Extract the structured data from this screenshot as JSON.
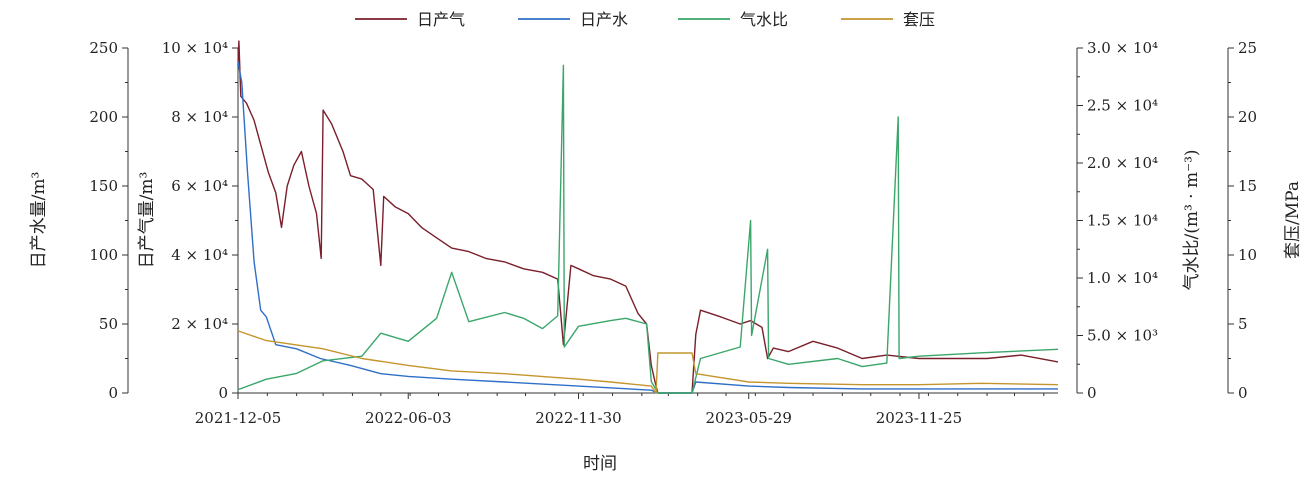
{
  "chart_data": {
    "type": "line",
    "xlabel": "时间",
    "x_ticks": [
      "2021-12-05",
      "2022-06-03",
      "2022-11-30",
      "2023-05-29",
      "2023-11-25"
    ],
    "x_range": [
      "2021-12-05",
      "2024-04-20"
    ],
    "y_axes": [
      {
        "id": "water",
        "label": "日产水量/m³",
        "range": [
          0,
          250
        ],
        "ticks": [
          "0",
          "50",
          "100",
          "150",
          "200",
          "250"
        ],
        "position": "outer-left"
      },
      {
        "id": "gas",
        "label": "日产气量/m³",
        "range": [
          0,
          100000
        ],
        "ticks": [
          "0",
          "2 × 10⁴",
          "4 × 10⁴",
          "6 × 10⁴",
          "8 × 10⁴",
          "10 × 10⁴"
        ],
        "position": "inner-left"
      },
      {
        "id": "ratio",
        "label": "气水比/(m³ · m⁻³)",
        "range": [
          0,
          30000
        ],
        "ticks": [
          "0",
          "5.0 × 10³",
          "1.0 × 10⁴",
          "1.5 × 10⁴",
          "2.0 × 10⁴",
          "2.5 × 10⁴",
          "3.0 × 10⁴"
        ],
        "position": "inner-right"
      },
      {
        "id": "pressure",
        "label": "套压/MPa",
        "range": [
          0,
          25
        ],
        "ticks": [
          "0",
          "5",
          "10",
          "15",
          "20",
          "25"
        ],
        "position": "outer-right"
      }
    ],
    "legend": [
      "日产气",
      "日产水",
      "气水比",
      "套压"
    ],
    "legend_position": "top",
    "series": [
      {
        "name": "日产气",
        "axis": "gas",
        "color": "#7a1f2b",
        "points": [
          [
            "2021-12-05",
            95000
          ],
          [
            "2021-12-06",
            102000
          ],
          [
            "2021-12-08",
            86000
          ],
          [
            "2021-12-14",
            84000
          ],
          [
            "2021-12-22",
            79000
          ],
          [
            "2021-12-29",
            72000
          ],
          [
            "2022-01-06",
            64000
          ],
          [
            "2022-01-14",
            58000
          ],
          [
            "2022-01-20",
            48000
          ],
          [
            "2022-01-26",
            60000
          ],
          [
            "2022-02-02",
            66000
          ],
          [
            "2022-02-10",
            70000
          ],
          [
            "2022-02-18",
            60000
          ],
          [
            "2022-02-26",
            52000
          ],
          [
            "2022-03-03",
            39000
          ],
          [
            "2022-03-05",
            82000
          ],
          [
            "2022-03-14",
            78000
          ],
          [
            "2022-03-26",
            70000
          ],
          [
            "2022-04-03",
            63000
          ],
          [
            "2022-04-15",
            62000
          ],
          [
            "2022-04-27",
            59000
          ],
          [
            "2022-05-05",
            37000
          ],
          [
            "2022-05-08",
            57000
          ],
          [
            "2022-05-20",
            54000
          ],
          [
            "2022-06-03",
            52000
          ],
          [
            "2022-06-17",
            48000
          ],
          [
            "2022-07-03",
            45000
          ],
          [
            "2022-07-19",
            42000
          ],
          [
            "2022-08-06",
            41000
          ],
          [
            "2022-08-24",
            39000
          ],
          [
            "2022-09-13",
            38000
          ],
          [
            "2022-10-03",
            36000
          ],
          [
            "2022-10-23",
            35000
          ],
          [
            "2022-11-08",
            33000
          ],
          [
            "2022-11-14",
            14000
          ],
          [
            "2022-11-22",
            37000
          ],
          [
            "2022-11-30",
            36000
          ],
          [
            "2022-12-16",
            34000
          ],
          [
            "2023-01-03",
            33000
          ],
          [
            "2023-01-19",
            31000
          ],
          [
            "2023-02-01",
            23000
          ],
          [
            "2023-02-10",
            20000
          ],
          [
            "2023-02-15",
            8000
          ],
          [
            "2023-02-20",
            2000
          ],
          [
            "2023-02-22",
            0
          ],
          [
            "2023-03-30",
            0
          ],
          [
            "2023-04-03",
            17000
          ],
          [
            "2023-04-08",
            24000
          ],
          [
            "2023-04-30",
            22000
          ],
          [
            "2023-05-20",
            20000
          ],
          [
            "2023-05-31",
            21000
          ],
          [
            "2023-06-12",
            19000
          ],
          [
            "2023-06-18",
            10000
          ],
          [
            "2023-06-24",
            13000
          ],
          [
            "2023-07-10",
            12000
          ],
          [
            "2023-08-05",
            15000
          ],
          [
            "2023-08-31",
            13000
          ],
          [
            "2023-09-26",
            10000
          ],
          [
            "2023-10-22",
            11000
          ],
          [
            "2023-11-25",
            10000
          ],
          [
            "2023-12-31",
            10000
          ],
          [
            "2024-02-05",
            10000
          ],
          [
            "2024-03-12",
            11000
          ],
          [
            "2024-04-20",
            9000
          ]
        ]
      },
      {
        "name": "日产水",
        "axis": "water",
        "color": "#2f6fc8",
        "points": [
          [
            "2021-12-05",
            240
          ],
          [
            "2021-12-09",
            225
          ],
          [
            "2021-12-15",
            160
          ],
          [
            "2021-12-22",
            95
          ],
          [
            "2021-12-29",
            60
          ],
          [
            "2022-01-04",
            55
          ],
          [
            "2022-01-14",
            35
          ],
          [
            "2022-02-05",
            32
          ],
          [
            "2022-03-02",
            25
          ],
          [
            "2022-04-03",
            20
          ],
          [
            "2022-05-05",
            14
          ],
          [
            "2022-06-03",
            12
          ],
          [
            "2022-07-19",
            10
          ],
          [
            "2022-09-13",
            8
          ],
          [
            "2022-11-30",
            5
          ],
          [
            "2023-02-15",
            2
          ],
          [
            "2023-02-22",
            0
          ],
          [
            "2023-03-30",
            0
          ],
          [
            "2023-04-03",
            8
          ],
          [
            "2023-05-29",
            5
          ],
          [
            "2023-07-10",
            4
          ],
          [
            "2023-09-26",
            3
          ],
          [
            "2023-11-25",
            3
          ],
          [
            "2024-01-30",
            3
          ],
          [
            "2024-04-20",
            3
          ]
        ]
      },
      {
        "name": "气水比",
        "axis": "ratio",
        "color": "#3aa66a",
        "points": [
          [
            "2021-12-05",
            300
          ],
          [
            "2022-01-04",
            1200
          ],
          [
            "2022-02-05",
            1700
          ],
          [
            "2022-03-05",
            2800
          ],
          [
            "2022-04-15",
            3200
          ],
          [
            "2022-05-05",
            5200
          ],
          [
            "2022-06-03",
            4500
          ],
          [
            "2022-07-03",
            6500
          ],
          [
            "2022-07-19",
            10500
          ],
          [
            "2022-08-06",
            6200
          ],
          [
            "2022-09-13",
            7000
          ],
          [
            "2022-10-03",
            6500
          ],
          [
            "2022-10-23",
            5600
          ],
          [
            "2022-11-08",
            6700
          ],
          [
            "2022-11-14",
            28500
          ],
          [
            "2022-11-15",
            4000
          ],
          [
            "2022-11-30",
            5800
          ],
          [
            "2023-01-03",
            6300
          ],
          [
            "2023-01-19",
            6500
          ],
          [
            "2023-02-10",
            6000
          ],
          [
            "2023-02-15",
            1000
          ],
          [
            "2023-02-22",
            0
          ],
          [
            "2023-03-30",
            0
          ],
          [
            "2023-04-08",
            3000
          ],
          [
            "2023-05-20",
            4000
          ],
          [
            "2023-05-31",
            15000
          ],
          [
            "2023-06-01",
            5000
          ],
          [
            "2023-06-18",
            12500
          ],
          [
            "2023-06-19",
            3000
          ],
          [
            "2023-07-10",
            2500
          ],
          [
            "2023-08-31",
            3000
          ],
          [
            "2023-09-26",
            2300
          ],
          [
            "2023-10-22",
            2600
          ],
          [
            "2023-11-03",
            24000
          ],
          [
            "2023-11-04",
            3000
          ],
          [
            "2023-11-25",
            3200
          ],
          [
            "2024-01-30",
            3500
          ],
          [
            "2024-04-20",
            3800
          ]
        ]
      },
      {
        "name": "套压",
        "axis": "pressure",
        "color": "#c4952e",
        "points": [
          [
            "2021-12-05",
            4.5
          ],
          [
            "2022-01-04",
            3.8
          ],
          [
            "2022-03-05",
            3.2
          ],
          [
            "2022-04-15",
            2.5
          ],
          [
            "2022-06-03",
            2.0
          ],
          [
            "2022-07-19",
            1.6
          ],
          [
            "2022-09-13",
            1.4
          ],
          [
            "2022-11-30",
            1.0
          ],
          [
            "2023-01-03",
            0.8
          ],
          [
            "2023-02-15",
            0.5
          ],
          [
            "2023-02-20",
            0.0
          ],
          [
            "2023-02-22",
            2.9
          ],
          [
            "2023-03-30",
            2.9
          ],
          [
            "2023-04-03",
            1.4
          ],
          [
            "2023-05-29",
            0.8
          ],
          [
            "2023-07-10",
            0.7
          ],
          [
            "2023-09-26",
            0.6
          ],
          [
            "2023-11-25",
            0.6
          ],
          [
            "2024-01-30",
            0.7
          ],
          [
            "2024-04-20",
            0.6
          ]
        ]
      }
    ]
  }
}
